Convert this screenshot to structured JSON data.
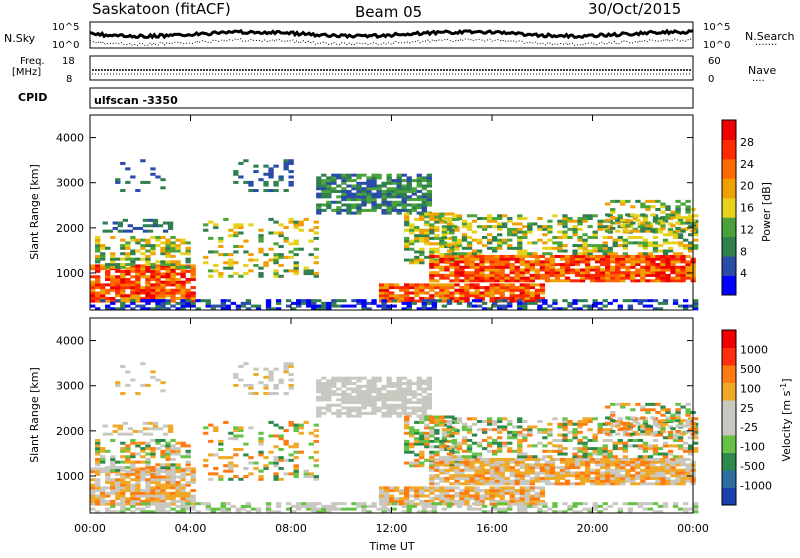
{
  "header": {
    "station": "Saskatoon (fitACF)",
    "beam": "Beam 05",
    "date": "30/Oct/2015"
  },
  "top_panels": {
    "nsky_label": "N.Sky",
    "nsky_ticks": [
      "10^5",
      "10^0"
    ],
    "nsearch_label": "N.Search",
    "nsearch_ticks": [
      "10^5",
      "10^0"
    ],
    "freq_label_1": "Freq.",
    "freq_label_2": "[MHz]",
    "freq_ticks": [
      "18",
      "8"
    ],
    "nave_label": "Nave",
    "nave_ticks": [
      "60",
      "0"
    ],
    "cpid_label": "CPID",
    "cpid_value": "ulfscan -3350"
  },
  "colors": {
    "power": [
      "#0000ff",
      "#2b4ba8",
      "#2f7f4f",
      "#4aa33a",
      "#e6d21a",
      "#f0a000",
      "#ff6a00",
      "#ff2a00",
      "#ee0000"
    ],
    "velocity": [
      "#1a3fb0",
      "#2b6fa0",
      "#2d8a4a",
      "#66c244",
      "#c8c8c0",
      "#c8c8c0",
      "#f0a828",
      "#ff7a10",
      "#ff3010",
      "#ee0000"
    ]
  },
  "chart_data": [
    {
      "type": "heatmap",
      "panel": "power",
      "ylabel": "Slant Range [km]",
      "ylim": [
        180,
        4500
      ],
      "yticks": [
        "1000",
        "2000",
        "3000",
        "4000"
      ],
      "xlabel": "",
      "xlim": [
        "00:00",
        "24:00"
      ],
      "colorbar_label": "Power [dB]",
      "colorbar_ticks": [
        "4",
        "8",
        "12",
        "16",
        "20",
        "24",
        "28"
      ]
    },
    {
      "type": "heatmap",
      "panel": "velocity",
      "ylabel": "Slant Range [km]",
      "ylim": [
        180,
        4500
      ],
      "yticks": [
        "1000",
        "2000",
        "3000",
        "4000"
      ],
      "xlabel": "Time UT",
      "xticks": [
        "00:00",
        "04:00",
        "08:00",
        "12:00",
        "16:00",
        "20:00",
        "00:00"
      ],
      "colorbar_label": "Velocity [m s",
      "colorbar_label_sup": "-1",
      "colorbar_label_end": "]",
      "colorbar_ticks": [
        "1000",
        "500",
        "100",
        "25",
        "-25",
        "-100",
        "-500",
        "-1000"
      ]
    }
  ]
}
